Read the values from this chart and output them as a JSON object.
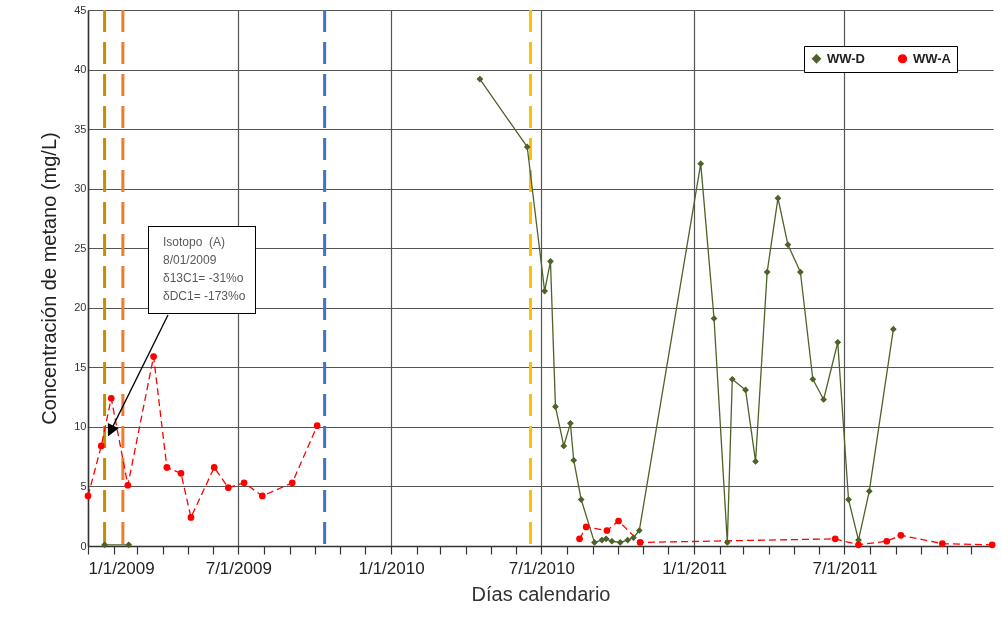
{
  "chart_data": {
    "type": "line",
    "xlabel": "Días calendario",
    "ylabel": "Concentración de metano (mg/L)",
    "xlim": [
      "2009-01-01",
      "2011-12-27"
    ],
    "xticks": [
      {
        "value": "2009-01-01",
        "label": "1/1/2009"
      },
      {
        "value": "2009-02-01",
        "label": null
      },
      {
        "value": "2009-03-01",
        "label": null
      },
      {
        "value": "2009-04-01",
        "label": null
      },
      {
        "value": "2009-05-01",
        "label": null
      },
      {
        "value": "2009-06-01",
        "label": null
      },
      {
        "value": "2009-07-01",
        "label": "7/1/2009"
      },
      {
        "value": "2009-08-01",
        "label": null
      },
      {
        "value": "2009-09-01",
        "label": null
      },
      {
        "value": "2009-10-01",
        "label": null
      },
      {
        "value": "2009-11-01",
        "label": null
      },
      {
        "value": "2009-12-01",
        "label": null
      },
      {
        "value": "2010-01-01",
        "label": "1/1/2010"
      },
      {
        "value": "2010-02-01",
        "label": null
      },
      {
        "value": "2010-03-01",
        "label": null
      },
      {
        "value": "2010-04-01",
        "label": null
      },
      {
        "value": "2010-05-01",
        "label": null
      },
      {
        "value": "2010-06-01",
        "label": null
      },
      {
        "value": "2010-07-01",
        "label": "7/1/2010"
      },
      {
        "value": "2010-08-01",
        "label": null
      },
      {
        "value": "2010-09-01",
        "label": null
      },
      {
        "value": "2010-10-01",
        "label": null
      },
      {
        "value": "2010-11-01",
        "label": null
      },
      {
        "value": "2010-12-01",
        "label": null
      },
      {
        "value": "2011-01-01",
        "label": "1/1/2011"
      },
      {
        "value": "2011-02-01",
        "label": null
      },
      {
        "value": "2011-03-01",
        "label": null
      },
      {
        "value": "2011-04-01",
        "label": null
      },
      {
        "value": "2011-05-01",
        "label": null
      },
      {
        "value": "2011-06-01",
        "label": null
      },
      {
        "value": "2011-07-01",
        "label": "7/1/2011"
      },
      {
        "value": "2011-08-01",
        "label": null
      },
      {
        "value": "2011-09-01",
        "label": null
      },
      {
        "value": "2011-10-01",
        "label": null
      },
      {
        "value": "2011-11-01",
        "label": null
      },
      {
        "value": "2011-12-01",
        "label": null
      }
    ],
    "ylim": [
      0,
      45
    ],
    "yticks": [
      0,
      5,
      10,
      15,
      20,
      25,
      30,
      35,
      40,
      45
    ],
    "grid": true,
    "legend": "top right",
    "series": [
      {
        "name": "WW-D",
        "color": "#4f6228",
        "marker": "diamond",
        "line_style": "solid",
        "x": [
          "2009-01-21",
          "2009-02-19",
          "2009-12-01",
          "2010-04-18",
          "2010-06-14",
          "2010-07-05",
          "2010-07-12",
          "2010-07-18",
          "2010-07-28",
          "2010-08-05",
          "2010-08-09",
          "2010-08-18",
          "2010-09-03",
          "2010-09-12",
          "2010-09-17",
          "2010-09-24",
          "2010-10-04",
          "2010-10-13",
          "2010-10-20",
          "2010-10-27",
          "2011-01-09",
          "2011-01-25",
          "2011-02-10",
          "2011-02-16",
          "2011-03-04",
          "2011-03-16",
          "2011-03-30",
          "2011-04-12",
          "2011-04-24",
          "2011-05-09",
          "2011-05-24",
          "2011-06-06",
          "2011-06-23",
          "2011-07-06",
          "2011-07-18",
          "2011-07-31",
          "2011-08-29"
        ],
        "values": [
          0.1,
          0.1,
          null,
          39.2,
          33.5,
          21.4,
          23.9,
          11.7,
          8.4,
          10.3,
          7.2,
          3.9,
          0.3,
          0.5,
          0.6,
          0.4,
          0.3,
          0.5,
          0.7,
          1.3,
          32.1,
          19.1,
          0.3,
          14.0,
          13.1,
          7.1,
          23.0,
          29.2,
          25.3,
          23.0,
          14.0,
          12.3,
          17.1,
          3.9,
          0.5,
          4.6,
          18.2
        ]
      },
      {
        "name": "WW-A",
        "color": "#ff0000",
        "marker": "circle",
        "line_style": "dashed",
        "x": [
          "2009-01-01",
          "2009-01-17",
          "2009-01-29",
          "2009-02-18",
          "2009-03-21",
          "2009-04-06",
          "2009-04-23",
          "2009-05-05",
          "2009-06-02",
          "2009-06-19",
          "2009-07-08",
          "2009-07-30",
          "2009-09-04",
          "2009-10-04",
          "2010-03-01",
          "2010-08-16",
          "2010-08-24",
          "2010-09-18",
          "2010-10-02",
          "2010-10-28",
          "2011-06-20",
          "2011-07-18",
          "2011-08-21",
          "2011-09-07",
          "2011-10-27",
          "2011-12-26"
        ],
        "values": [
          4.2,
          8.4,
          12.4,
          5.1,
          15.9,
          6.6,
          6.1,
          2.4,
          6.6,
          4.9,
          5.3,
          4.2,
          5.3,
          10.1,
          null,
          0.6,
          1.6,
          1.3,
          2.1,
          0.3,
          0.6,
          0.1,
          0.4,
          0.9,
          0.2,
          0.1
        ]
      }
    ],
    "ref_lines": [
      {
        "axis": "x",
        "value": "2009-01-21",
        "color": "#bf9000",
        "line_style": "dashed"
      },
      {
        "axis": "x",
        "value": "2009-02-12",
        "color": "#ed7d31",
        "line_style": "dashed"
      },
      {
        "axis": "x",
        "value": "2009-10-13",
        "color": "#4472c4",
        "line_style": "dashed"
      },
      {
        "axis": "x",
        "value": "2010-06-18",
        "color": "#ffc000",
        "line_style": "dashed"
      }
    ],
    "annotations": [
      {
        "text": "Isotopo  (A)\n8/01/2009\nδ13C1= -31%o\nδDC1= -173%o",
        "x": "2009-01-25",
        "y": 9.2
      }
    ]
  }
}
